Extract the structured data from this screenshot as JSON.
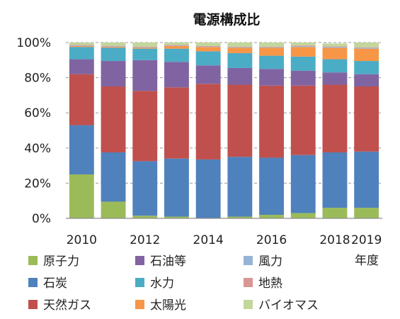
{
  "colors": {
    "原子力": "#9bbb59",
    "石炭": "#4f81bd",
    "天然ガス": "#c0504d",
    "石油等": "#8064a2",
    "水力": "#4bacc6",
    "太陽光": "#f79646",
    "風力": "#95b3d7",
    "地熱": "#d99694",
    "バイオマス": "#c3d69b"
  },
  "chart_data": {
    "type": "bar",
    "stacked": true,
    "title": "電源構成比",
    "xlabel": "年度",
    "ylabel": "",
    "ylim": [
      0,
      100
    ],
    "yticks": [
      "0%",
      "20%",
      "40%",
      "60%",
      "80%",
      "100%"
    ],
    "grid": true,
    "legend_position": "bottom",
    "categories": [
      "2010",
      "2011",
      "2012",
      "2013",
      "2014",
      "2015",
      "2016",
      "2017",
      "2018",
      "2019"
    ],
    "xtick_labels": [
      "2010",
      "",
      "2012",
      "",
      "2014",
      "",
      "2016",
      "",
      "2018",
      "2019"
    ],
    "series": [
      {
        "name": "原子力",
        "values": [
          25,
          9.5,
          1.5,
          1,
          0,
          1,
          2,
          3,
          6,
          6
        ]
      },
      {
        "name": "石炭",
        "values": [
          28,
          28,
          31,
          33,
          33.5,
          34,
          32.5,
          33,
          31.5,
          32
        ]
      },
      {
        "name": "天然ガス",
        "values": [
          29,
          37.5,
          40,
          40.5,
          43,
          41,
          41,
          39.5,
          38.5,
          37
        ]
      },
      {
        "name": "石油等",
        "values": [
          8.5,
          14.5,
          17.5,
          14.5,
          10.5,
          9.5,
          9.5,
          8.5,
          7,
          7
        ]
      },
      {
        "name": "水力",
        "values": [
          7,
          7.5,
          6.5,
          7.5,
          8,
          8.5,
          7.5,
          8,
          7.5,
          7.5
        ]
      },
      {
        "name": "太陽光",
        "values": [
          0.5,
          0.5,
          0.5,
          1.5,
          2.5,
          3,
          4.5,
          5.5,
          6.5,
          7
        ]
      },
      {
        "name": "風力",
        "values": [
          0.3,
          0.3,
          0.3,
          0.3,
          0.3,
          0.3,
          0.3,
          0.5,
          0.5,
          0.5
        ]
      },
      {
        "name": "地熱",
        "values": [
          0.3,
          0.3,
          0.3,
          0.3,
          0.3,
          0.3,
          0.3,
          0.3,
          0.3,
          0.3
        ]
      },
      {
        "name": "バイオマス",
        "values": [
          1.4,
          1.9,
          2.4,
          1.4,
          1.9,
          2.4,
          2.4,
          1.7,
          1.7,
          2.7
        ]
      }
    ]
  }
}
